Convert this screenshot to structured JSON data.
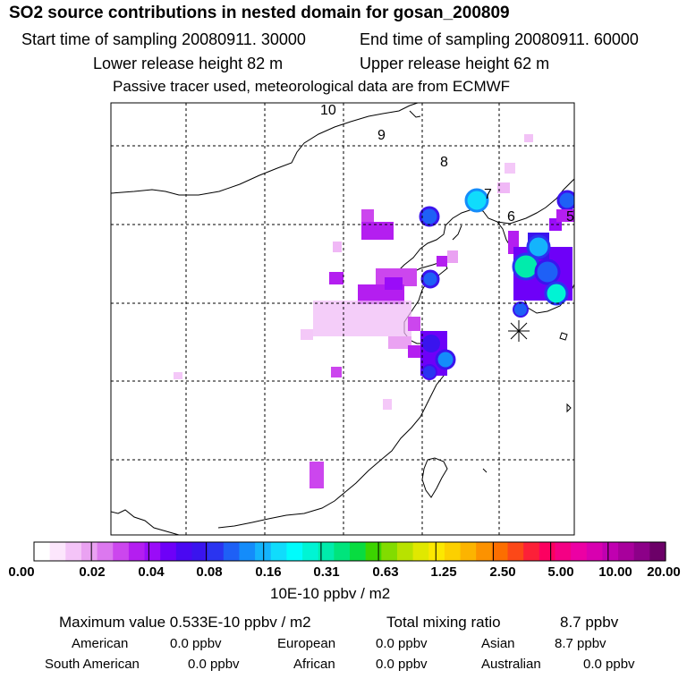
{
  "header": {
    "title": "SO2 source contributions in nested domain for gosan_200809",
    "start_time": "Start time of sampling 20080911. 30000",
    "end_time": "End time of sampling 20080911. 60000",
    "lower_height": "Lower release height   82 m",
    "upper_height": "Upper release height   62 m",
    "note": "Passive tracer used, meteorological data are from ECMWF"
  },
  "map": {
    "trajectory_labels": [
      "10",
      "9",
      "8",
      "7",
      "6",
      "5"
    ],
    "receptor_marker": "asterisk"
  },
  "colorbar": {
    "colors": [
      "#ffffff",
      "#fce6fc",
      "#f4c4f8",
      "#eaa2f2",
      "#dc78ef",
      "#cc46ee",
      "#b41ef0",
      "#9a0cf8",
      "#6e00f8",
      "#4a08f2",
      "#3a14ee",
      "#2a34f0",
      "#1e60f6",
      "#148cfa",
      "#14b4fc",
      "#10dcfc",
      "#00fcfc",
      "#00f4d4",
      "#00ecac",
      "#00e47c",
      "#08dc40",
      "#3cd400",
      "#82dc00",
      "#b8e200",
      "#e0e800",
      "#fce800",
      "#fcd000",
      "#fcb400",
      "#fc9200",
      "#fc6e00",
      "#fc4818",
      "#fc2038",
      "#fc0060",
      "#f40084",
      "#ec00a4",
      "#d800b0",
      "#c000b0",
      "#a8009c",
      "#8c0088",
      "#6c0068"
    ],
    "ticks": [
      "0.00",
      "0.02",
      "0.04",
      "0.08",
      "0.16",
      "0.31",
      "0.63",
      "1.25",
      "2.50",
      "5.00",
      "10.00",
      "20.00"
    ],
    "unit": "10E-10 ppbv / m2"
  },
  "summary": {
    "max_label": "Maximum value  0.533E-10 ppbv / m2",
    "total_label": "Total mixing ratio",
    "total_value": "8.7 ppbv",
    "regions": [
      {
        "name": "American",
        "value": "0.0 ppbv"
      },
      {
        "name": "European",
        "value": "0.0 ppbv"
      },
      {
        "name": "Asian",
        "value": "8.7 ppbv"
      },
      {
        "name": "South American",
        "value": "0.0 ppbv"
      },
      {
        "name": "African",
        "value": "0.0 ppbv"
      },
      {
        "name": "Australian",
        "value": "0.0 ppbv"
      }
    ]
  }
}
